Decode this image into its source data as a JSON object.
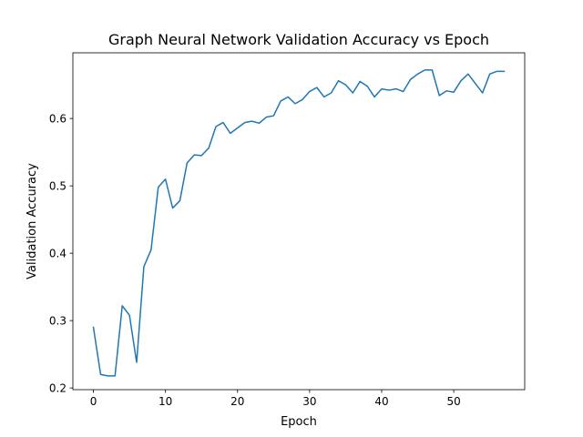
{
  "chart_data": {
    "type": "line",
    "title": "Graph Neural Network Validation Accuracy vs Epoch",
    "xlabel": "Epoch",
    "ylabel": "Validation Accuracy",
    "xlim": [
      -2.85,
      59.85
    ],
    "ylim": [
      0.1975,
      0.6975
    ],
    "x_ticks": [
      0,
      10,
      20,
      30,
      40,
      50
    ],
    "x_tick_labels": [
      "0",
      "10",
      "20",
      "30",
      "40",
      "50"
    ],
    "y_ticks": [
      0.2,
      0.3,
      0.4,
      0.5,
      0.6
    ],
    "y_tick_labels": [
      "0.2",
      "0.3",
      "0.4",
      "0.5",
      "0.6"
    ],
    "grid": false,
    "legend": "none",
    "series": [
      {
        "color": "#1f77b4",
        "x": [
          0,
          1,
          2,
          3,
          4,
          5,
          6,
          7,
          8,
          9,
          10,
          11,
          12,
          13,
          14,
          15,
          16,
          17,
          18,
          19,
          20,
          21,
          22,
          23,
          24,
          25,
          26,
          27,
          28,
          29,
          30,
          31,
          32,
          33,
          34,
          35,
          36,
          37,
          38,
          39,
          40,
          41,
          42,
          43,
          44,
          45,
          46,
          47,
          48,
          49,
          50,
          51,
          52,
          53,
          54,
          55,
          56,
          57
        ],
        "values": [
          0.29,
          0.22,
          0.218,
          0.218,
          0.322,
          0.308,
          0.238,
          0.38,
          0.405,
          0.498,
          0.51,
          0.467,
          0.478,
          0.534,
          0.546,
          0.545,
          0.556,
          0.588,
          0.594,
          0.578,
          0.586,
          0.594,
          0.596,
          0.593,
          0.602,
          0.604,
          0.626,
          0.632,
          0.622,
          0.628,
          0.64,
          0.646,
          0.632,
          0.638,
          0.656,
          0.65,
          0.638,
          0.655,
          0.648,
          0.632,
          0.644,
          0.642,
          0.644,
          0.64,
          0.658,
          0.666,
          0.672,
          0.672,
          0.634,
          0.641,
          0.639,
          0.656,
          0.666,
          0.652,
          0.638,
          0.666,
          0.67,
          0.67
        ]
      }
    ]
  }
}
